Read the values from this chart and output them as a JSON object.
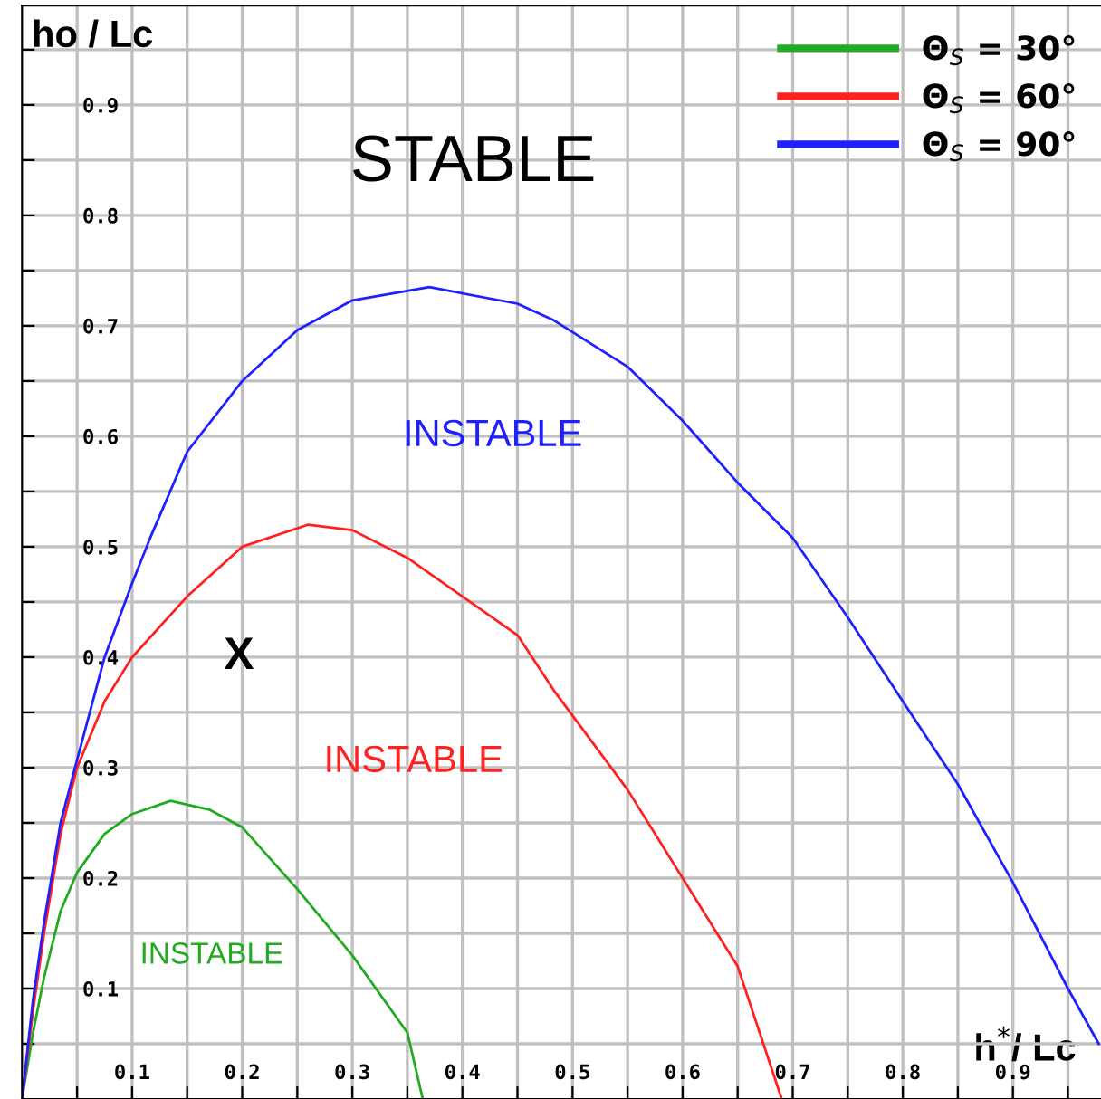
{
  "chart_data": {
    "type": "line",
    "xlabel": "h$^{*}$/ Lc",
    "ylabel": "ho / Lc",
    "xlim": [
      0,
      0.985
    ],
    "ylim": [
      0,
      0.99
    ],
    "xticks": [
      {
        "value": 0.05,
        "label": null
      },
      0.1,
      {
        "value": 0.15,
        "label": null
      },
      0.2,
      {
        "value": 0.25,
        "label": null
      },
      0.3,
      {
        "value": 0.35,
        "label": null
      },
      0.4,
      {
        "value": 0.45,
        "label": null
      },
      0.5,
      {
        "value": 0.55,
        "label": null
      },
      0.6,
      {
        "value": 0.65,
        "label": null
      },
      0.7,
      {
        "value": 0.75,
        "label": null
      },
      0.8,
      {
        "value": 0.85,
        "label": null
      },
      0.9,
      {
        "value": 0.95,
        "label": null
      }
    ],
    "yticks": [
      {
        "value": 0.05,
        "label": null
      },
      0.1,
      {
        "value": 0.15,
        "label": null
      },
      0.2,
      {
        "value": 0.25,
        "label": null
      },
      0.3,
      {
        "value": 0.35,
        "label": null
      },
      0.4,
      {
        "value": 0.45,
        "label": null
      },
      0.5,
      {
        "value": 0.55,
        "label": null
      },
      0.6,
      {
        "value": 0.65,
        "label": null
      },
      0.7,
      {
        "value": 0.75,
        "label": null
      },
      0.8,
      {
        "value": 0.85,
        "label": null
      },
      0.9,
      {
        "value": 0.95,
        "label": null
      }
    ],
    "grid": true,
    "legend": "top right",
    "marker": "none",
    "line_style": "solid",
    "series": [
      {
        "name": "Θ$_{S}$ = 30°",
        "color": "#22aa22",
        "x": [
          0,
          0.01,
          0.02,
          0.035,
          0.05,
          0.075,
          0.1,
          0.135,
          0.17,
          0.2,
          0.25,
          0.3,
          0.35,
          0.364
        ],
        "values": [
          0,
          0.06,
          0.11,
          0.17,
          0.205,
          0.24,
          0.258,
          0.27,
          0.262,
          0.246,
          0.19,
          0.13,
          0.06,
          0.0
        ]
      },
      {
        "name": "Θ$_{S}$ = 60°",
        "color": "#ff2020",
        "x": [
          0,
          0.01,
          0.02,
          0.035,
          0.05,
          0.075,
          0.1,
          0.15,
          0.2,
          0.26,
          0.3,
          0.35,
          0.4,
          0.45,
          0.483,
          0.55,
          0.6,
          0.65,
          0.69
        ],
        "values": [
          0,
          0.08,
          0.15,
          0.24,
          0.3,
          0.36,
          0.4,
          0.455,
          0.5,
          0.52,
          0.515,
          0.49,
          0.455,
          0.42,
          0.37,
          0.28,
          0.2,
          0.12,
          0.0
        ]
      },
      {
        "name": "Θ$_{S}$ = 90°",
        "color": "#2020ff",
        "x": [
          0,
          0.01,
          0.02,
          0.035,
          0.05,
          0.075,
          0.1,
          0.116,
          0.15,
          0.2,
          0.25,
          0.3,
          0.37,
          0.45,
          0.483,
          0.55,
          0.6,
          0.65,
          0.7,
          0.75,
          0.8,
          0.85,
          0.9,
          0.95,
          0.978
        ],
        "values": [
          0,
          0.09,
          0.16,
          0.25,
          0.307,
          0.4,
          0.467,
          0.507,
          0.586,
          0.65,
          0.696,
          0.723,
          0.735,
          0.72,
          0.705,
          0.663,
          0.614,
          0.558,
          0.508,
          0.436,
          0.36,
          0.285,
          0.196,
          0.1,
          0.05
        ]
      }
    ],
    "annotations": [
      "STABLE",
      "INSTABLE",
      "X",
      "INSTABLE",
      "INSTABLE"
    ]
  }
}
